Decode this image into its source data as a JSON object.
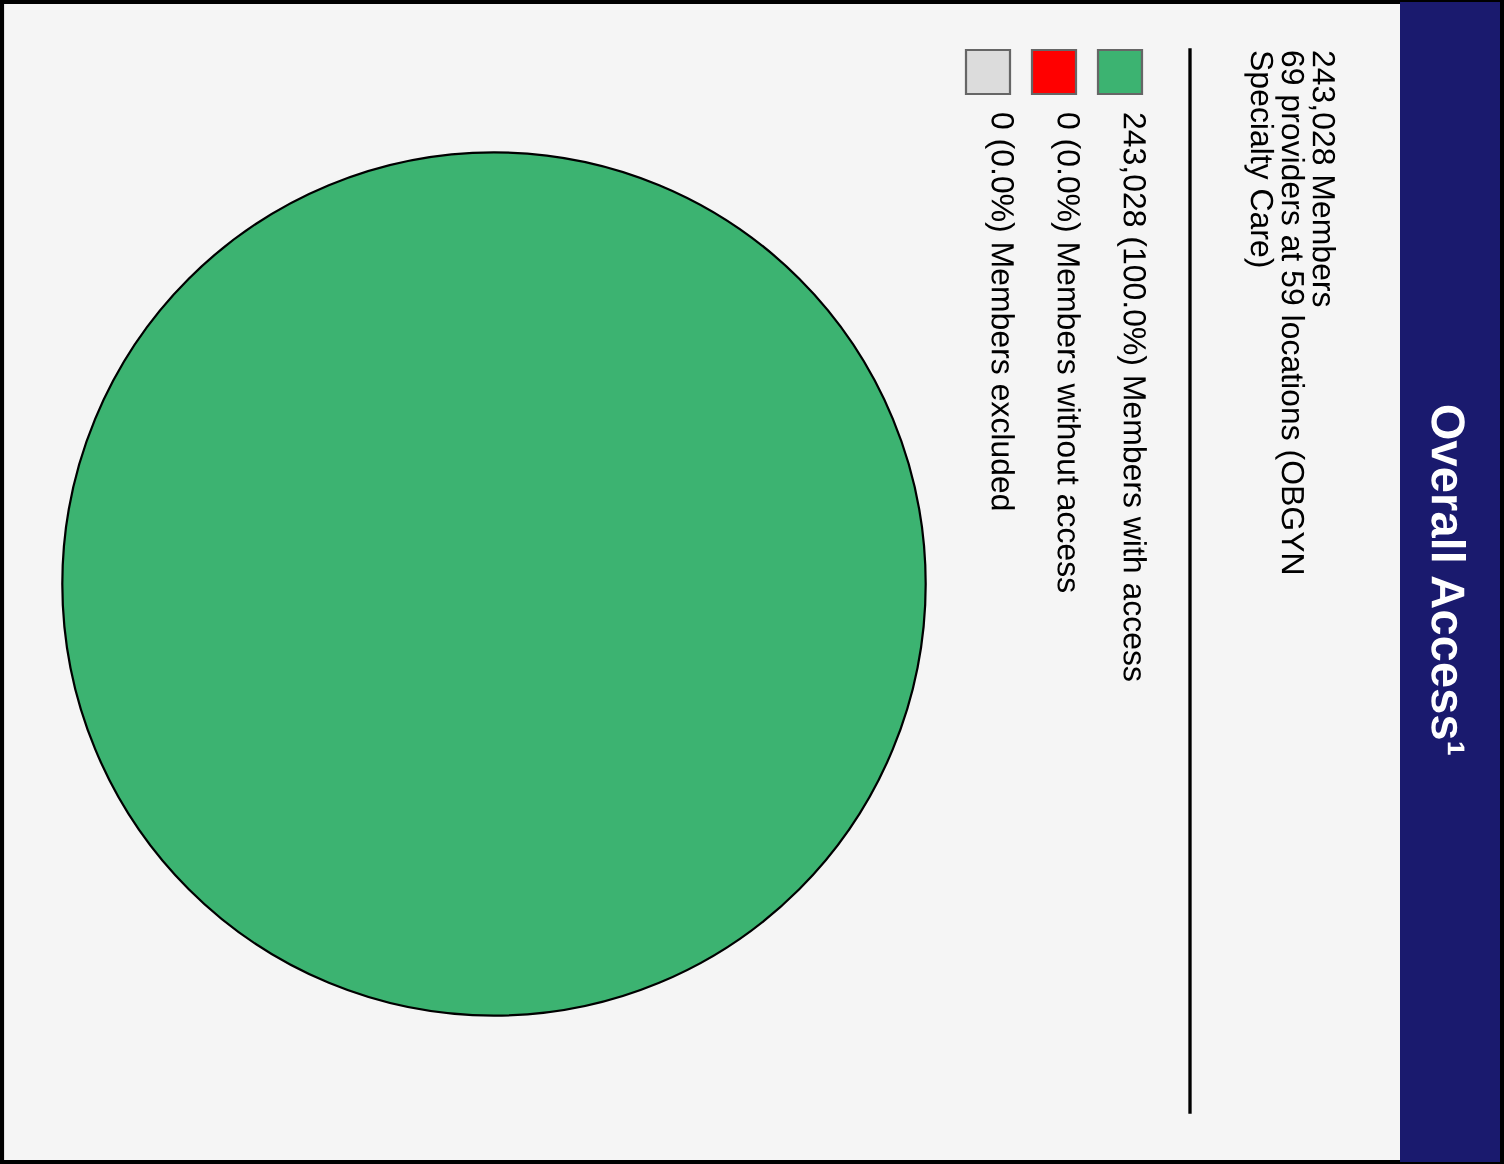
{
  "chart_data": {
    "type": "pie",
    "title": "Overall Access¹",
    "subtitle": "243,028 Members\n69 providers at 59 locations (OBGYN\nSpecialty Care)",
    "categories": [
      "243,028 (100.0%) Members with access",
      "0 (0.0%) Members without access",
      "0 (0.0%) Members excluded"
    ],
    "values": [
      243028,
      0,
      0
    ],
    "colors": [
      "#3cb371",
      "#ff0000",
      "#dcdcdc"
    ],
    "legend": "right"
  }
}
